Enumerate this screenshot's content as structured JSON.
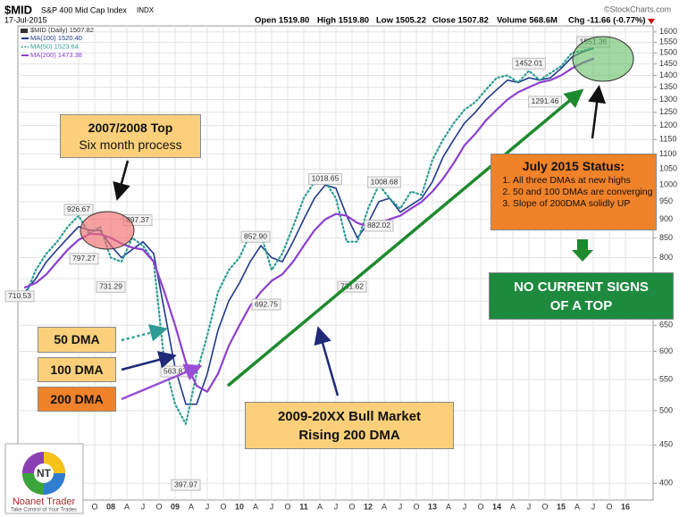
{
  "chart_data": {
    "type": "line",
    "title": "$MID",
    "subtitle": "S&P 400 Mid Cap Index",
    "exchange": "INDX",
    "date": "17-Jul-2015",
    "quote": [
      "Open 1519.80",
      "High 1519.80",
      "Low 1505.22",
      "Close 1507.82",
      "Volume 568.6M",
      "Chg -11.66 (-0.77%)"
    ],
    "source": "©StockCharts.com",
    "price_label": "$MID (Daily) 1507.82",
    "log_scale": true,
    "grid": true,
    "x": [
      "2006-09",
      "2006-11",
      "2007-01",
      "2007-03",
      "2007-05",
      "2007-07",
      "2007-09",
      "2007-11",
      "2008-01",
      "2008-03",
      "2008-05",
      "2008-07",
      "2008-09",
      "2008-11",
      "2009-01",
      "2009-03",
      "2009-05",
      "2009-07",
      "2009-09",
      "2009-11",
      "2010-01",
      "2010-03",
      "2010-05",
      "2010-07",
      "2010-09",
      "2010-11",
      "2011-01",
      "2011-03",
      "2011-05",
      "2011-07",
      "2011-09",
      "2011-11",
      "2012-01",
      "2012-03",
      "2012-05",
      "2012-07",
      "2012-09",
      "2012-11",
      "2013-01",
      "2013-03",
      "2013-05",
      "2013-07",
      "2013-09",
      "2013-11",
      "2014-01",
      "2014-03",
      "2014-05",
      "2014-07",
      "2014-09",
      "2014-11",
      "2015-01",
      "2015-03",
      "2015-05",
      "2015-07"
    ],
    "series": [
      {
        "name": "MA(100) 1520.40",
        "color": "#1f3a8a",
        "dash": false,
        "values": [
          720,
          750,
          790,
          820,
          850,
          880,
          870,
          870,
          830,
          800,
          820,
          840,
          810,
          680,
          570,
          510,
          510,
          560,
          640,
          700,
          740,
          790,
          830,
          800,
          790,
          840,
          900,
          960,
          1000,
          990,
          910,
          850,
          890,
          950,
          960,
          920,
          940,
          960,
          1010,
          1090,
          1150,
          1210,
          1250,
          1300,
          1340,
          1380,
          1370,
          1390,
          1380,
          1390,
          1430,
          1480,
          1505,
          1520.4
        ]
      },
      {
        "name": "MA(50) 1523.64",
        "color": "#2e9c94",
        "dash": true,
        "values": [
          710,
          770,
          810,
          840,
          880,
          910,
          860,
          880,
          800,
          790,
          850,
          830,
          790,
          580,
          510,
          480,
          560,
          630,
          720,
          770,
          800,
          860,
          860,
          770,
          810,
          880,
          960,
          1010,
          1010,
          960,
          840,
          840,
          930,
          1000,
          960,
          930,
          980,
          970,
          1080,
          1150,
          1210,
          1260,
          1290,
          1340,
          1390,
          1400,
          1370,
          1420,
          1380,
          1410,
          1440,
          1500,
          1510,
          1523.64
        ]
      },
      {
        "name": "MA(200) 1473.38",
        "color": "#8e3fcf",
        "dash": false,
        "values": [
          730,
          740,
          760,
          790,
          820,
          845,
          860,
          860,
          850,
          835,
          825,
          820,
          790,
          720,
          650,
          580,
          540,
          530,
          560,
          610,
          650,
          690,
          720,
          745,
          760,
          790,
          830,
          870,
          900,
          915,
          910,
          890,
          880,
          890,
          900,
          910,
          930,
          950,
          980,
          1020,
          1070,
          1130,
          1170,
          1220,
          1260,
          1300,
          1330,
          1350,
          1370,
          1380,
          1400,
          1430,
          1455,
          1473.38
        ]
      }
    ],
    "xlim": [
      "2006-08",
      "2016-06"
    ],
    "xticks": [
      {
        "value": "2007-07",
        "label": "J"
      },
      {
        "value": "2007-10",
        "label": "O"
      },
      {
        "value": "2008-01",
        "label": "08"
      },
      {
        "value": "2008-04",
        "label": "A"
      },
      {
        "value": "2008-07",
        "label": "J"
      },
      {
        "value": "2008-10",
        "label": "O"
      },
      {
        "value": "2009-01",
        "label": "09"
      },
      {
        "value": "2009-04",
        "label": "A"
      },
      {
        "value": "2009-07",
        "label": "J"
      },
      {
        "value": "2009-10",
        "label": "O"
      },
      {
        "value": "2010-01",
        "label": "10"
      },
      {
        "value": "2010-04",
        "label": "A"
      },
      {
        "value": "2010-07",
        "label": "J"
      },
      {
        "value": "2010-10",
        "label": "O"
      },
      {
        "value": "2011-01",
        "label": "11"
      },
      {
        "value": "2011-04",
        "label": "A"
      },
      {
        "value": "2011-07",
        "label": "J"
      },
      {
        "value": "2011-10",
        "label": "O"
      },
      {
        "value": "2012-01",
        "label": "12"
      },
      {
        "value": "2012-04",
        "label": "A"
      },
      {
        "value": "2012-07",
        "label": "J"
      },
      {
        "value": "2012-10",
        "label": "O"
      },
      {
        "value": "2013-01",
        "label": "13"
      },
      {
        "value": "2013-04",
        "label": "A"
      },
      {
        "value": "2013-07",
        "label": "J"
      },
      {
        "value": "2013-10",
        "label": "O"
      },
      {
        "value": "2014-01",
        "label": "14"
      },
      {
        "value": "2014-04",
        "label": "A"
      },
      {
        "value": "2014-07",
        "label": "J"
      },
      {
        "value": "2014-10",
        "label": "O"
      },
      {
        "value": "2015-01",
        "label": "15"
      },
      {
        "value": "2015-04",
        "label": "A"
      },
      {
        "value": "2015-07",
        "label": "J"
      },
      {
        "value": "2015-10",
        "label": "O"
      },
      {
        "value": "2016-01",
        "label": "16"
      }
    ],
    "ylim": [
      380,
      1630
    ],
    "yticks": [
      400,
      450,
      500,
      550,
      600,
      650,
      700,
      750,
      800,
      850,
      900,
      950,
      1000,
      1050,
      1100,
      1150,
      1200,
      1250,
      1300,
      1350,
      1400,
      1450,
      1500,
      1550,
      1600
    ],
    "point_labels": [
      {
        "x": "2007-07",
        "value": 926.67
      },
      {
        "x": "2007-08",
        "value": 797.27
      },
      {
        "x": "2006-08",
        "value": 710.53
      },
      {
        "x": "2008-01",
        "value": 731.29
      },
      {
        "x": "2008-06",
        "value": 897.37
      },
      {
        "x": "2010-04",
        "value": 852.9,
        "label": "852.90"
      },
      {
        "x": "2010-06",
        "value": 692.75
      },
      {
        "x": "2011-05",
        "value": 1018.65
      },
      {
        "x": "2012-04",
        "value": 1008.68
      },
      {
        "x": "2012-03",
        "value": 882.02
      },
      {
        "x": "2011-10",
        "value": 731.62
      },
      {
        "x": "2014-07",
        "value": 1452.01
      },
      {
        "x": "2015-07",
        "value": 1551.36
      },
      {
        "x": "2014-10",
        "value": 1291.46
      },
      {
        "x": "2009-01",
        "value": 563.87
      },
      {
        "x": "2009-03",
        "value": 397.97
      }
    ]
  },
  "annotations": {
    "top_box": [
      "2007/2008 Top",
      "Six month process"
    ],
    "status_title": "July 2015 Status:",
    "status_items": [
      "All three DMAs at new highs",
      "50 and 100 DMAs are converging",
      "Slope of 200DMA solidly UP"
    ],
    "no_signs": [
      "NO CURRENT SIGNS",
      "OF A TOP"
    ],
    "dma_labels": [
      "50 DMA",
      "100 DMA",
      "200 DMA"
    ],
    "bull_box": [
      "2009-20XX Bull Market",
      "Rising 200 DMA"
    ]
  },
  "logo": {
    "letters": "NT",
    "name": "Noanet Trader",
    "tagline": "Take Control of Your Trades"
  }
}
